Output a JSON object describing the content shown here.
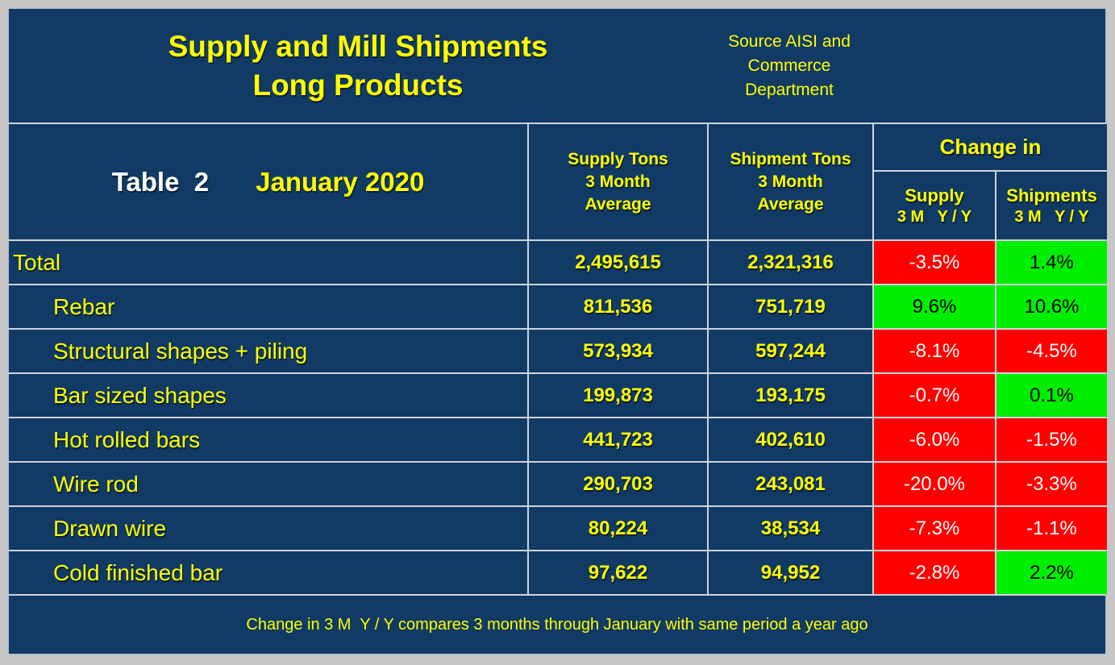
{
  "colors": {
    "background_navy": "#113a65",
    "grid_line": "#cfd5dc",
    "accent_yellow": "#ffff00",
    "negative_bg": "#ff0000",
    "negative_text": "#ffffff",
    "positive_bg": "#00ee00",
    "positive_text": "#000000",
    "page_gray": "#c6c6c6"
  },
  "title": {
    "line1": "Supply and Mill Shipments",
    "line2": "Long Products"
  },
  "source": {
    "line1": "Source AISI and",
    "line2": "Commerce",
    "line3": "Department"
  },
  "header": {
    "table_label": "Table  2",
    "period": "January 2020",
    "col_supply": {
      "l1": "Supply Tons",
      "l2": "3 Month",
      "l3": "Average"
    },
    "col_shipment": {
      "l1": "Shipment Tons",
      "l2": "3 Month",
      "l3": "Average"
    },
    "change_in": "Change in",
    "chg_supply": {
      "l1": "Supply",
      "l2": "3 M   Y / Y"
    },
    "chg_shipments": {
      "l1": "Shipments",
      "l2": "3 M   Y / Y"
    }
  },
  "rows": [
    {
      "label": "Total",
      "supply": "2,495,615",
      "shipment": "2,321,316",
      "supply_change": "-3.5%",
      "shipments_change": "1.4%"
    },
    {
      "label": "Rebar",
      "supply": "811,536",
      "shipment": "751,719",
      "supply_change": "9.6%",
      "shipments_change": "10.6%"
    },
    {
      "label": "Structural shapes + piling",
      "supply": "573,934",
      "shipment": "597,244",
      "supply_change": "-8.1%",
      "shipments_change": "-4.5%"
    },
    {
      "label": "Bar sized shapes",
      "supply": "199,873",
      "shipment": "193,175",
      "supply_change": "-0.7%",
      "shipments_change": "0.1%"
    },
    {
      "label": "Hot rolled bars",
      "supply": "441,723",
      "shipment": "402,610",
      "supply_change": "-6.0%",
      "shipments_change": "-1.5%"
    },
    {
      "label": "Wire rod",
      "supply": "290,703",
      "shipment": "243,081",
      "supply_change": "-20.0%",
      "shipments_change": "-3.3%"
    },
    {
      "label": "Drawn wire",
      "supply": "80,224",
      "shipment": "38,534",
      "supply_change": "-7.3%",
      "shipments_change": "-1.1%"
    },
    {
      "label": "Cold finished bar",
      "supply": "97,622",
      "shipment": "94,952",
      "supply_change": "-2.8%",
      "shipments_change": "2.2%"
    }
  ],
  "footer": {
    "note": "Change in 3 M  Y / Y compares 3 months through January with same period a year ago"
  },
  "chart_data": {
    "type": "table",
    "title": "Supply and Mill Shipments — Long Products (Table 2, January 2020)",
    "source": "AISI and Commerce Department",
    "columns": [
      "Product",
      "Supply Tons 3 Month Average",
      "Shipment Tons 3 Month Average",
      "Change in Supply 3M Y/Y (%)",
      "Change in Shipments 3M Y/Y (%)"
    ],
    "rows": [
      [
        "Total",
        2495615,
        2321316,
        -3.5,
        1.4
      ],
      [
        "Rebar",
        811536,
        751719,
        9.6,
        10.6
      ],
      [
        "Structural shapes + piling",
        573934,
        597244,
        -8.1,
        -4.5
      ],
      [
        "Bar sized shapes",
        199873,
        193175,
        -0.7,
        0.1
      ],
      [
        "Hot rolled bars",
        441723,
        402610,
        -6.0,
        -1.5
      ],
      [
        "Wire rod",
        290703,
        243081,
        -20.0,
        -3.3
      ],
      [
        "Drawn wire",
        80224,
        38534,
        -7.3,
        -1.1
      ],
      [
        "Cold finished bar",
        97622,
        94952,
        -2.8,
        2.2
      ]
    ],
    "note": "Change in 3 M Y/Y compares 3 months through January with same period a year ago"
  }
}
